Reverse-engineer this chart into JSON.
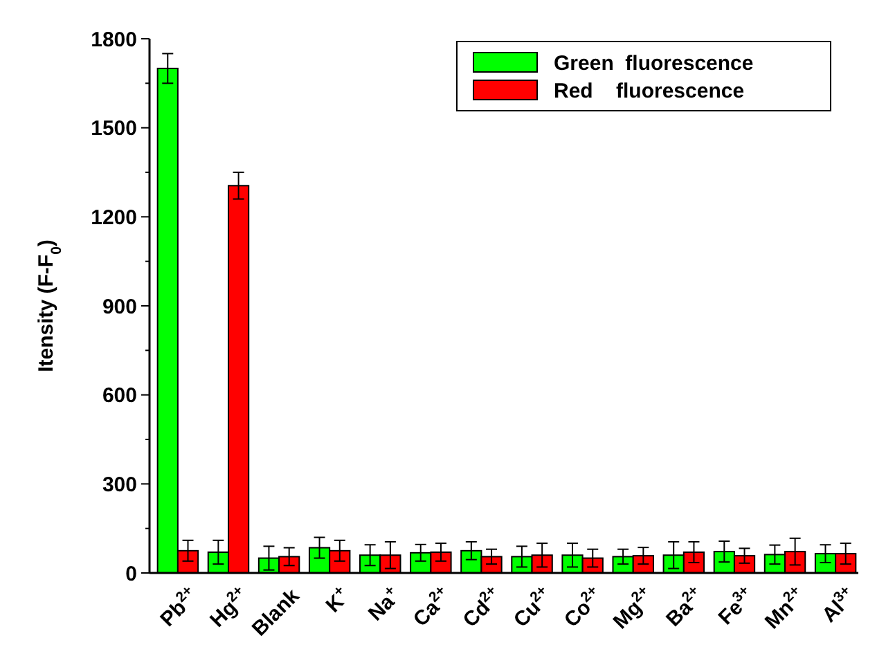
{
  "chart_data": {
    "type": "bar",
    "ylabel": "Itensity (F-F$_{0}$)",
    "categories": [
      "Pb$^{2+}$",
      "Hg$^{2+}$",
      "Blank",
      "K$^{+}$",
      "Na$^{+}$",
      "Ca$^{2+}$",
      "Cd$^{2+}$",
      "Cu$^{2+}$",
      "Co$^{2+}$",
      "Mg$^{2+}$",
      "Ba$^{2+}$",
      "Fe$^{3+}$",
      "Mn$^{2+}$",
      "Al$^{3+}$"
    ],
    "series": [
      {
        "name": "Green  fluorescence",
        "color": "#00ff00",
        "values": [
          1700,
          70,
          50,
          85,
          60,
          68,
          75,
          55,
          60,
          55,
          60,
          72,
          62,
          65
        ],
        "errors": [
          50,
          40,
          40,
          35,
          35,
          28,
          30,
          35,
          40,
          25,
          45,
          35,
          32,
          30
        ]
      },
      {
        "name": "Red    fluorescence",
        "color": "#ff0000",
        "values": [
          75,
          1305,
          55,
          75,
          60,
          70,
          55,
          60,
          50,
          58,
          70,
          58,
          72,
          65
        ],
        "errors": [
          35,
          45,
          30,
          35,
          45,
          30,
          25,
          40,
          30,
          28,
          35,
          25,
          45,
          35
        ]
      }
    ],
    "ylim": [
      0,
      1800
    ],
    "yticks": [
      0,
      {
        "value": 150,
        "label": null
      },
      300,
      {
        "value": 450,
        "label": null
      },
      600,
      {
        "value": 750,
        "label": null
      },
      900,
      {
        "value": 1050,
        "label": null
      },
      1200,
      {
        "value": 1350,
        "label": null
      },
      1500,
      {
        "value": 1650,
        "label": null
      },
      1800
    ],
    "legend": "top right",
    "grid": false
  }
}
